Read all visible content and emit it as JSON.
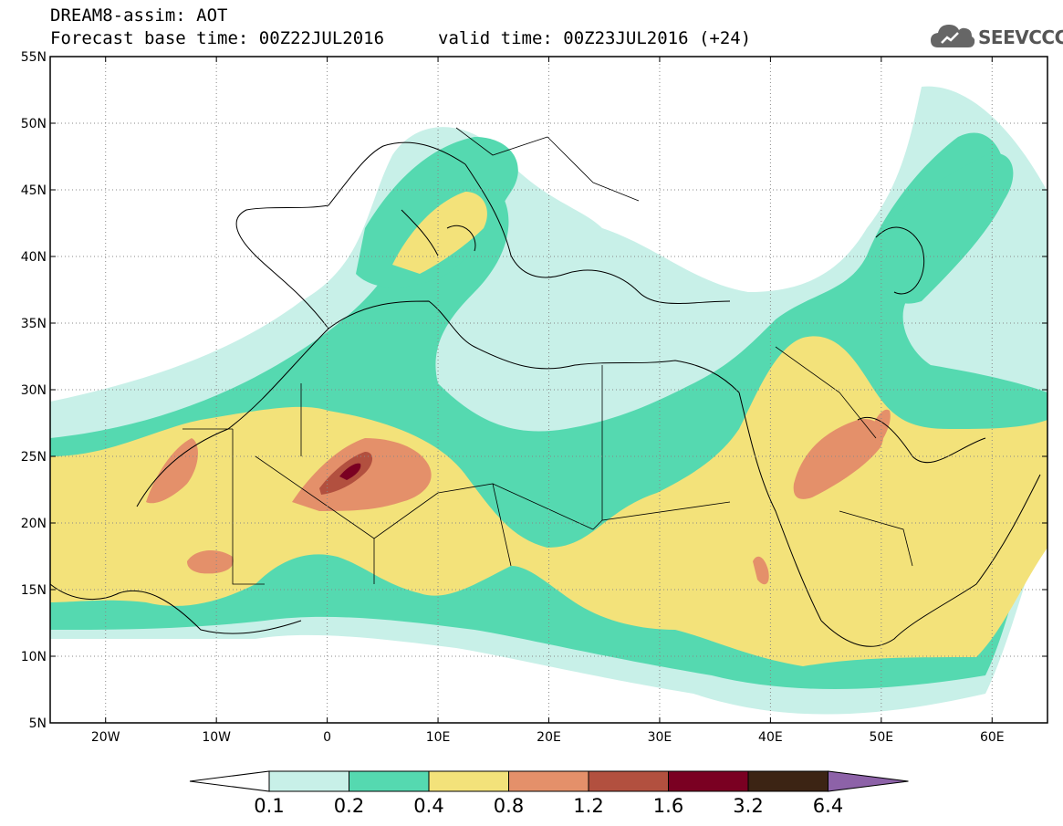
{
  "header": {
    "title": "DREAM8-assim: AOT",
    "base_time": "Forecast base time: 00Z22JUL2016",
    "valid_time": "valid time: 00Z23JUL2016 (+24)",
    "logo_text": "SEEVCCC"
  },
  "map": {
    "lat_labels": [
      "55N",
      "50N",
      "45N",
      "40N",
      "35N",
      "30N",
      "25N",
      "20N",
      "15N",
      "10N",
      "5N"
    ],
    "lon_labels": [
      "20W",
      "10W",
      "0",
      "10E",
      "20E",
      "30E",
      "40E",
      "50E",
      "60E"
    ],
    "extent": {
      "lon_min": -25,
      "lon_max": 65,
      "lat_min": 5,
      "lat_max": 55
    }
  },
  "colorbar": {
    "colors": [
      "#c8f0e8",
      "#55d9b0",
      "#f3e27a",
      "#e4906a",
      "#b2503f",
      "#7a0022",
      "#3c2414",
      "#8d62a8"
    ],
    "labels": [
      "0.1",
      "0.2",
      "0.4",
      "0.8",
      "1.2",
      "1.6",
      "3.2",
      "6.4"
    ]
  },
  "colors": {
    "c1": "#c8f0e8",
    "c2": "#55d9b0",
    "c3": "#f3e27a",
    "c4": "#e4906a",
    "c5": "#b2503f",
    "c6": "#7a0022"
  }
}
